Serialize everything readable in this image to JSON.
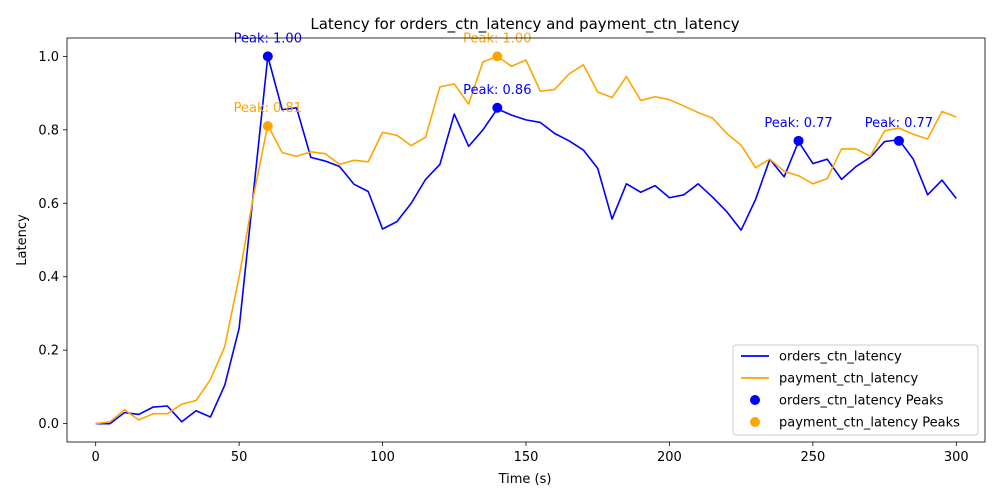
{
  "chart_data": {
    "type": "line",
    "title": "Latency for orders_ctn_latency and payment_ctn_latency",
    "xlabel": "Time (s)",
    "ylabel": "Latency",
    "xlim": [
      -10,
      310
    ],
    "ylim": [
      -0.05,
      1.05
    ],
    "xticks": [
      0,
      50,
      100,
      150,
      200,
      250,
      300
    ],
    "yticks": [
      0.0,
      0.2,
      0.4,
      0.6,
      0.8,
      1.0
    ],
    "xtick_labels": [
      "0",
      "50",
      "100",
      "150",
      "200",
      "250",
      "300"
    ],
    "ytick_labels": [
      "0.0",
      "0.2",
      "0.4",
      "0.6",
      "0.8",
      "1.0"
    ],
    "grid": false,
    "legend_position": "lower-right",
    "x": [
      0,
      5,
      10,
      15,
      20,
      25,
      30,
      35,
      40,
      45,
      50,
      55,
      60,
      65,
      70,
      75,
      80,
      85,
      90,
      95,
      100,
      105,
      110,
      115,
      120,
      125,
      130,
      135,
      140,
      145,
      150,
      155,
      160,
      165,
      170,
      175,
      180,
      185,
      190,
      195,
      200,
      205,
      210,
      215,
      220,
      225,
      230,
      235,
      240,
      245,
      250,
      255,
      260,
      265,
      270,
      275,
      280,
      285,
      290,
      295,
      300
    ],
    "series": [
      {
        "name": "orders_ctn_latency",
        "color": "#0000ff",
        "values": [
          0.0,
          0.0,
          0.03,
          0.025,
          0.045,
          0.048,
          0.005,
          0.035,
          0.018,
          0.105,
          0.26,
          0.63,
          1.0,
          0.855,
          0.86,
          0.725,
          0.715,
          0.7,
          0.652,
          0.632,
          0.53,
          0.55,
          0.6,
          0.665,
          0.706,
          0.843,
          0.755,
          0.8,
          0.857,
          0.84,
          0.827,
          0.82,
          0.79,
          0.77,
          0.745,
          0.695,
          0.557,
          0.653,
          0.63,
          0.648,
          0.615,
          0.623,
          0.653,
          0.617,
          0.577,
          0.527,
          0.61,
          0.72,
          0.672,
          0.768,
          0.708,
          0.72,
          0.665,
          0.7,
          0.725,
          0.768,
          0.773,
          0.72,
          0.623,
          0.663,
          0.613
        ]
      },
      {
        "name": "payment_ctn_latency",
        "color": "#ffa500",
        "values": [
          0.0,
          0.005,
          0.038,
          0.01,
          0.027,
          0.027,
          0.053,
          0.063,
          0.12,
          0.21,
          0.4,
          0.62,
          0.813,
          0.738,
          0.728,
          0.74,
          0.735,
          0.706,
          0.717,
          0.713,
          0.793,
          0.785,
          0.757,
          0.78,
          0.917,
          0.925,
          0.87,
          0.985,
          1.0,
          0.973,
          0.99,
          0.905,
          0.91,
          0.952,
          0.977,
          0.903,
          0.888,
          0.945,
          0.88,
          0.89,
          0.882,
          0.865,
          0.847,
          0.832,
          0.79,
          0.758,
          0.697,
          0.72,
          0.687,
          0.675,
          0.653,
          0.667,
          0.748,
          0.748,
          0.728,
          0.797,
          0.805,
          0.788,
          0.775,
          0.85,
          0.835
        ]
      }
    ],
    "peaks": [
      {
        "series": "orders_ctn_latency",
        "x": 60,
        "y": 1.0,
        "label": "Peak: 1.00"
      },
      {
        "series": "orders_ctn_latency",
        "x": 140,
        "y": 0.86,
        "label": "Peak: 0.86"
      },
      {
        "series": "orders_ctn_latency",
        "x": 245,
        "y": 0.77,
        "label": "Peak: 0.77"
      },
      {
        "series": "orders_ctn_latency",
        "x": 280,
        "y": 0.77,
        "label": "Peak: 0.77"
      },
      {
        "series": "payment_ctn_latency",
        "x": 60,
        "y": 0.81,
        "label": "Peak: 0.81"
      },
      {
        "series": "payment_ctn_latency",
        "x": 140,
        "y": 1.0,
        "label": "Peak: 1.00"
      }
    ],
    "legend": [
      {
        "kind": "line",
        "color": "#0000ff",
        "label": "orders_ctn_latency"
      },
      {
        "kind": "line",
        "color": "#ffa500",
        "label": "payment_ctn_latency"
      },
      {
        "kind": "marker",
        "color": "#0000ff",
        "label": "orders_ctn_latency Peaks"
      },
      {
        "kind": "marker",
        "color": "#ffa500",
        "label": "payment_ctn_latency Peaks"
      }
    ]
  }
}
